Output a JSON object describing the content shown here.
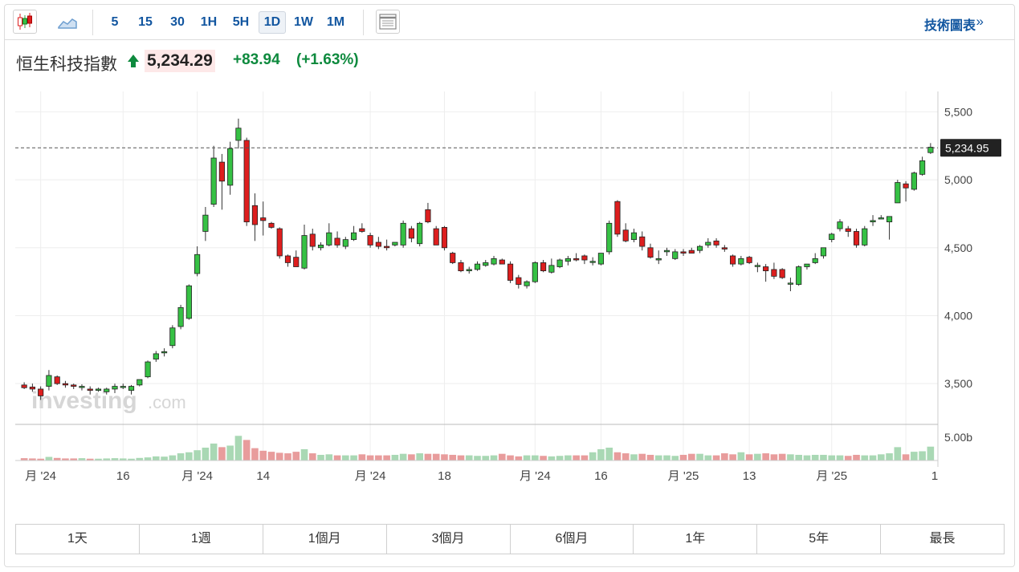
{
  "toolbar": {
    "intervals": [
      "5",
      "15",
      "30",
      "1H",
      "5H",
      "1D",
      "1W",
      "1M"
    ],
    "active_interval": "1D",
    "tech_chart_label": "技術圖表",
    "tech_chart_arrow": "»"
  },
  "quote": {
    "name": "恒生科技指數",
    "price": "5,234.29",
    "change": "+83.94",
    "change_pct": "(+1.63%)"
  },
  "watermark": {
    "brand": "investing",
    "suffix": ".com"
  },
  "chart_data": {
    "type": "candlestick",
    "ylim": [
      3200,
      5650
    ],
    "y_ticks": [
      3500,
      4000,
      4500,
      5000,
      5500
    ],
    "y_tick_labels": [
      "3,500",
      "4,000",
      "4,500",
      "5,000",
      "5,500"
    ],
    "last_price_label": "5,234.95",
    "last_price": 5234.95,
    "volume_label": "5.00b",
    "volume_max": 5.0,
    "x_tick_labels": [
      "月 '24",
      "16",
      "月 '24",
      "14",
      "月 '24",
      "18",
      "月 '24",
      "16",
      "月 '25",
      "13",
      "月 '25",
      "1"
    ],
    "up_color": "#36c144",
    "down_color": "#dd1e1e",
    "candles": [
      {
        "o": 3490,
        "h": 3510,
        "l": 3460,
        "c": 3470
      },
      {
        "o": 3475,
        "h": 3500,
        "l": 3440,
        "c": 3460
      },
      {
        "o": 3460,
        "h": 3480,
        "l": 3380,
        "c": 3410
      },
      {
        "o": 3480,
        "h": 3600,
        "l": 3450,
        "c": 3560
      },
      {
        "o": 3550,
        "h": 3560,
        "l": 3490,
        "c": 3500
      },
      {
        "o": 3500,
        "h": 3520,
        "l": 3470,
        "c": 3490
      },
      {
        "o": 3490,
        "h": 3500,
        "l": 3460,
        "c": 3480
      },
      {
        "o": 3480,
        "h": 3495,
        "l": 3450,
        "c": 3480
      },
      {
        "o": 3460,
        "h": 3480,
        "l": 3420,
        "c": 3450
      },
      {
        "o": 3450,
        "h": 3470,
        "l": 3440,
        "c": 3460
      },
      {
        "o": 3440,
        "h": 3470,
        "l": 3420,
        "c": 3460
      },
      {
        "o": 3460,
        "h": 3500,
        "l": 3430,
        "c": 3480
      },
      {
        "o": 3480,
        "h": 3500,
        "l": 3460,
        "c": 3480
      },
      {
        "o": 3450,
        "h": 3490,
        "l": 3420,
        "c": 3480
      },
      {
        "o": 3490,
        "h": 3530,
        "l": 3480,
        "c": 3530
      },
      {
        "o": 3550,
        "h": 3670,
        "l": 3540,
        "c": 3660
      },
      {
        "o": 3680,
        "h": 3740,
        "l": 3660,
        "c": 3720
      },
      {
        "o": 3730,
        "h": 3760,
        "l": 3700,
        "c": 3735
      },
      {
        "o": 3780,
        "h": 3930,
        "l": 3760,
        "c": 3910
      },
      {
        "o": 3920,
        "h": 4080,
        "l": 3900,
        "c": 4060
      },
      {
        "o": 3980,
        "h": 4230,
        "l": 3970,
        "c": 4220
      },
      {
        "o": 4310,
        "h": 4510,
        "l": 4290,
        "c": 4450
      },
      {
        "o": 4620,
        "h": 4800,
        "l": 4550,
        "c": 4740
      },
      {
        "o": 4820,
        "h": 5250,
        "l": 4800,
        "c": 5160
      },
      {
        "o": 5130,
        "h": 5190,
        "l": 4780,
        "c": 4990
      },
      {
        "o": 4960,
        "h": 5280,
        "l": 4890,
        "c": 5230
      },
      {
        "o": 5290,
        "h": 5450,
        "l": 5230,
        "c": 5380
      },
      {
        "o": 5290,
        "h": 5310,
        "l": 4660,
        "c": 4690
      },
      {
        "o": 4810,
        "h": 4900,
        "l": 4550,
        "c": 4670
      },
      {
        "o": 4720,
        "h": 4840,
        "l": 4590,
        "c": 4700
      },
      {
        "o": 4680,
        "h": 4690,
        "l": 4640,
        "c": 4650
      },
      {
        "o": 4640,
        "h": 4650,
        "l": 4420,
        "c": 4440
      },
      {
        "o": 4440,
        "h": 4450,
        "l": 4360,
        "c": 4390
      },
      {
        "o": 4430,
        "h": 4480,
        "l": 4370,
        "c": 4360
      },
      {
        "o": 4350,
        "h": 4670,
        "l": 4340,
        "c": 4590
      },
      {
        "o": 4600,
        "h": 4640,
        "l": 4480,
        "c": 4510
      },
      {
        "o": 4500,
        "h": 4540,
        "l": 4480,
        "c": 4520
      },
      {
        "o": 4520,
        "h": 4680,
        "l": 4510,
        "c": 4610
      },
      {
        "o": 4570,
        "h": 4620,
        "l": 4500,
        "c": 4520
      },
      {
        "o": 4510,
        "h": 4580,
        "l": 4490,
        "c": 4560
      },
      {
        "o": 4560,
        "h": 4660,
        "l": 4550,
        "c": 4610
      },
      {
        "o": 4640,
        "h": 4680,
        "l": 4610,
        "c": 4620
      },
      {
        "o": 4590,
        "h": 4610,
        "l": 4500,
        "c": 4520
      },
      {
        "o": 4540,
        "h": 4580,
        "l": 4490,
        "c": 4510
      },
      {
        "o": 4510,
        "h": 4560,
        "l": 4480,
        "c": 4500
      },
      {
        "o": 4520,
        "h": 4540,
        "l": 4510,
        "c": 4540
      },
      {
        "o": 4520,
        "h": 4700,
        "l": 4500,
        "c": 4680
      },
      {
        "o": 4640,
        "h": 4660,
        "l": 4540,
        "c": 4570
      },
      {
        "o": 4530,
        "h": 4690,
        "l": 4510,
        "c": 4680
      },
      {
        "o": 4780,
        "h": 4830,
        "l": 4680,
        "c": 4690
      },
      {
        "o": 4640,
        "h": 4660,
        "l": 4520,
        "c": 4520
      },
      {
        "o": 4650,
        "h": 4660,
        "l": 4480,
        "c": 4500
      },
      {
        "o": 4460,
        "h": 4470,
        "l": 4380,
        "c": 4390
      },
      {
        "o": 4390,
        "h": 4410,
        "l": 4320,
        "c": 4330
      },
      {
        "o": 4330,
        "h": 4360,
        "l": 4310,
        "c": 4340
      },
      {
        "o": 4340,
        "h": 4400,
        "l": 4330,
        "c": 4380
      },
      {
        "o": 4370,
        "h": 4410,
        "l": 4360,
        "c": 4390
      },
      {
        "o": 4380,
        "h": 4440,
        "l": 4370,
        "c": 4420
      },
      {
        "o": 4410,
        "h": 4420,
        "l": 4380,
        "c": 4380
      },
      {
        "o": 4380,
        "h": 4400,
        "l": 4240,
        "c": 4260
      },
      {
        "o": 4280,
        "h": 4300,
        "l": 4200,
        "c": 4230
      },
      {
        "o": 4220,
        "h": 4260,
        "l": 4200,
        "c": 4250
      },
      {
        "o": 4250,
        "h": 4400,
        "l": 4240,
        "c": 4390
      },
      {
        "o": 4390,
        "h": 4410,
        "l": 4320,
        "c": 4330
      },
      {
        "o": 4320,
        "h": 4420,
        "l": 4310,
        "c": 4370
      },
      {
        "o": 4360,
        "h": 4420,
        "l": 4350,
        "c": 4410
      },
      {
        "o": 4400,
        "h": 4440,
        "l": 4370,
        "c": 4420
      },
      {
        "o": 4420,
        "h": 4460,
        "l": 4400,
        "c": 4410
      },
      {
        "o": 4440,
        "h": 4450,
        "l": 4380,
        "c": 4410
      },
      {
        "o": 4400,
        "h": 4430,
        "l": 4370,
        "c": 4400
      },
      {
        "o": 4380,
        "h": 4460,
        "l": 4370,
        "c": 4460
      },
      {
        "o": 4470,
        "h": 4700,
        "l": 4450,
        "c": 4680
      },
      {
        "o": 4840,
        "h": 4850,
        "l": 4580,
        "c": 4600
      },
      {
        "o": 4630,
        "h": 4680,
        "l": 4540,
        "c": 4550
      },
      {
        "o": 4560,
        "h": 4640,
        "l": 4540,
        "c": 4610
      },
      {
        "o": 4580,
        "h": 4620,
        "l": 4480,
        "c": 4510
      },
      {
        "o": 4500,
        "h": 4530,
        "l": 4420,
        "c": 4430
      },
      {
        "o": 4410,
        "h": 4480,
        "l": 4380,
        "c": 4420
      },
      {
        "o": 4470,
        "h": 4500,
        "l": 4440,
        "c": 4480
      },
      {
        "o": 4420,
        "h": 4490,
        "l": 4410,
        "c": 4470
      },
      {
        "o": 4470,
        "h": 4490,
        "l": 4440,
        "c": 4460
      },
      {
        "o": 4480,
        "h": 4500,
        "l": 4460,
        "c": 4460
      },
      {
        "o": 4480,
        "h": 4520,
        "l": 4460,
        "c": 4510
      },
      {
        "o": 4520,
        "h": 4570,
        "l": 4500,
        "c": 4540
      },
      {
        "o": 4550,
        "h": 4570,
        "l": 4500,
        "c": 4520
      },
      {
        "o": 4500,
        "h": 4520,
        "l": 4470,
        "c": 4490
      },
      {
        "o": 4440,
        "h": 4450,
        "l": 4360,
        "c": 4380
      },
      {
        "o": 4380,
        "h": 4440,
        "l": 4370,
        "c": 4420
      },
      {
        "o": 4430,
        "h": 4440,
        "l": 4380,
        "c": 4390
      },
      {
        "o": 4370,
        "h": 4390,
        "l": 4320,
        "c": 4370
      },
      {
        "o": 4360,
        "h": 4380,
        "l": 4250,
        "c": 4330
      },
      {
        "o": 4340,
        "h": 4390,
        "l": 4270,
        "c": 4290
      },
      {
        "o": 4340,
        "h": 4350,
        "l": 4270,
        "c": 4280
      },
      {
        "o": 4240,
        "h": 4280,
        "l": 4180,
        "c": 4240
      },
      {
        "o": 4230,
        "h": 4370,
        "l": 4220,
        "c": 4360
      },
      {
        "o": 4360,
        "h": 4380,
        "l": 4340,
        "c": 4380
      },
      {
        "o": 4390,
        "h": 4460,
        "l": 4380,
        "c": 4420
      },
      {
        "o": 4440,
        "h": 4500,
        "l": 4420,
        "c": 4500
      },
      {
        "o": 4560,
        "h": 4610,
        "l": 4540,
        "c": 4600
      },
      {
        "o": 4640,
        "h": 4710,
        "l": 4620,
        "c": 4690
      },
      {
        "o": 4640,
        "h": 4660,
        "l": 4580,
        "c": 4620
      },
      {
        "o": 4620,
        "h": 4640,
        "l": 4500,
        "c": 4520
      },
      {
        "o": 4520,
        "h": 4660,
        "l": 4510,
        "c": 4640
      },
      {
        "o": 4690,
        "h": 4740,
        "l": 4660,
        "c": 4700
      },
      {
        "o": 4720,
        "h": 4740,
        "l": 4710,
        "c": 4720
      },
      {
        "o": 4690,
        "h": 4730,
        "l": 4560,
        "c": 4730
      },
      {
        "o": 4830,
        "h": 5000,
        "l": 4830,
        "c": 4980
      },
      {
        "o": 4970,
        "h": 4990,
        "l": 4840,
        "c": 4940
      },
      {
        "o": 4930,
        "h": 5060,
        "l": 4920,
        "c": 5050
      },
      {
        "o": 5040,
        "h": 5170,
        "l": 5030,
        "c": 5140
      },
      {
        "o": 5200,
        "h": 5270,
        "l": 5190,
        "c": 5240
      }
    ],
    "volumes": [
      0.45,
      0.4,
      0.35,
      0.7,
      0.5,
      0.4,
      0.4,
      0.45,
      0.35,
      0.35,
      0.4,
      0.45,
      0.4,
      0.35,
      0.5,
      0.6,
      0.8,
      0.75,
      1.0,
      1.4,
      1.6,
      2.0,
      2.5,
      3.3,
      2.6,
      2.9,
      4.8,
      4.0,
      2.4,
      1.9,
      1.7,
      1.5,
      1.4,
      1.7,
      2.2,
      1.4,
      1.1,
      1.2,
      1.0,
      1.0,
      1.0,
      1.2,
      1.0,
      1.0,
      1.0,
      1.1,
      1.3,
      1.2,
      1.4,
      1.3,
      1.3,
      1.2,
      1.1,
      1.0,
      1.0,
      0.9,
      0.9,
      1.0,
      1.3,
      1.0,
      0.8,
      1.0,
      1.0,
      0.9,
      0.8,
      0.9,
      1.0,
      1.0,
      1.0,
      1.6,
      2.2,
      2.5,
      1.6,
      1.4,
      1.2,
      1.3,
      1.1,
      1.0,
      1.0,
      0.9,
      1.1,
      1.3,
      1.3,
      1.0,
      1.0,
      1.4,
      1.2,
      1.6,
      1.2,
      1.3,
      1.4,
      1.2,
      1.3,
      1.2,
      1.1,
      1.0,
      1.1,
      1.1,
      1.0,
      1.0,
      0.9,
      1.1,
      1.0,
      1.0,
      1.2,
      1.4,
      2.6,
      1.2,
      1.7,
      1.8,
      2.7
    ]
  },
  "ranges": [
    "1天",
    "1週",
    "1個月",
    "3個月",
    "6個月",
    "1年",
    "5年",
    "最長"
  ]
}
